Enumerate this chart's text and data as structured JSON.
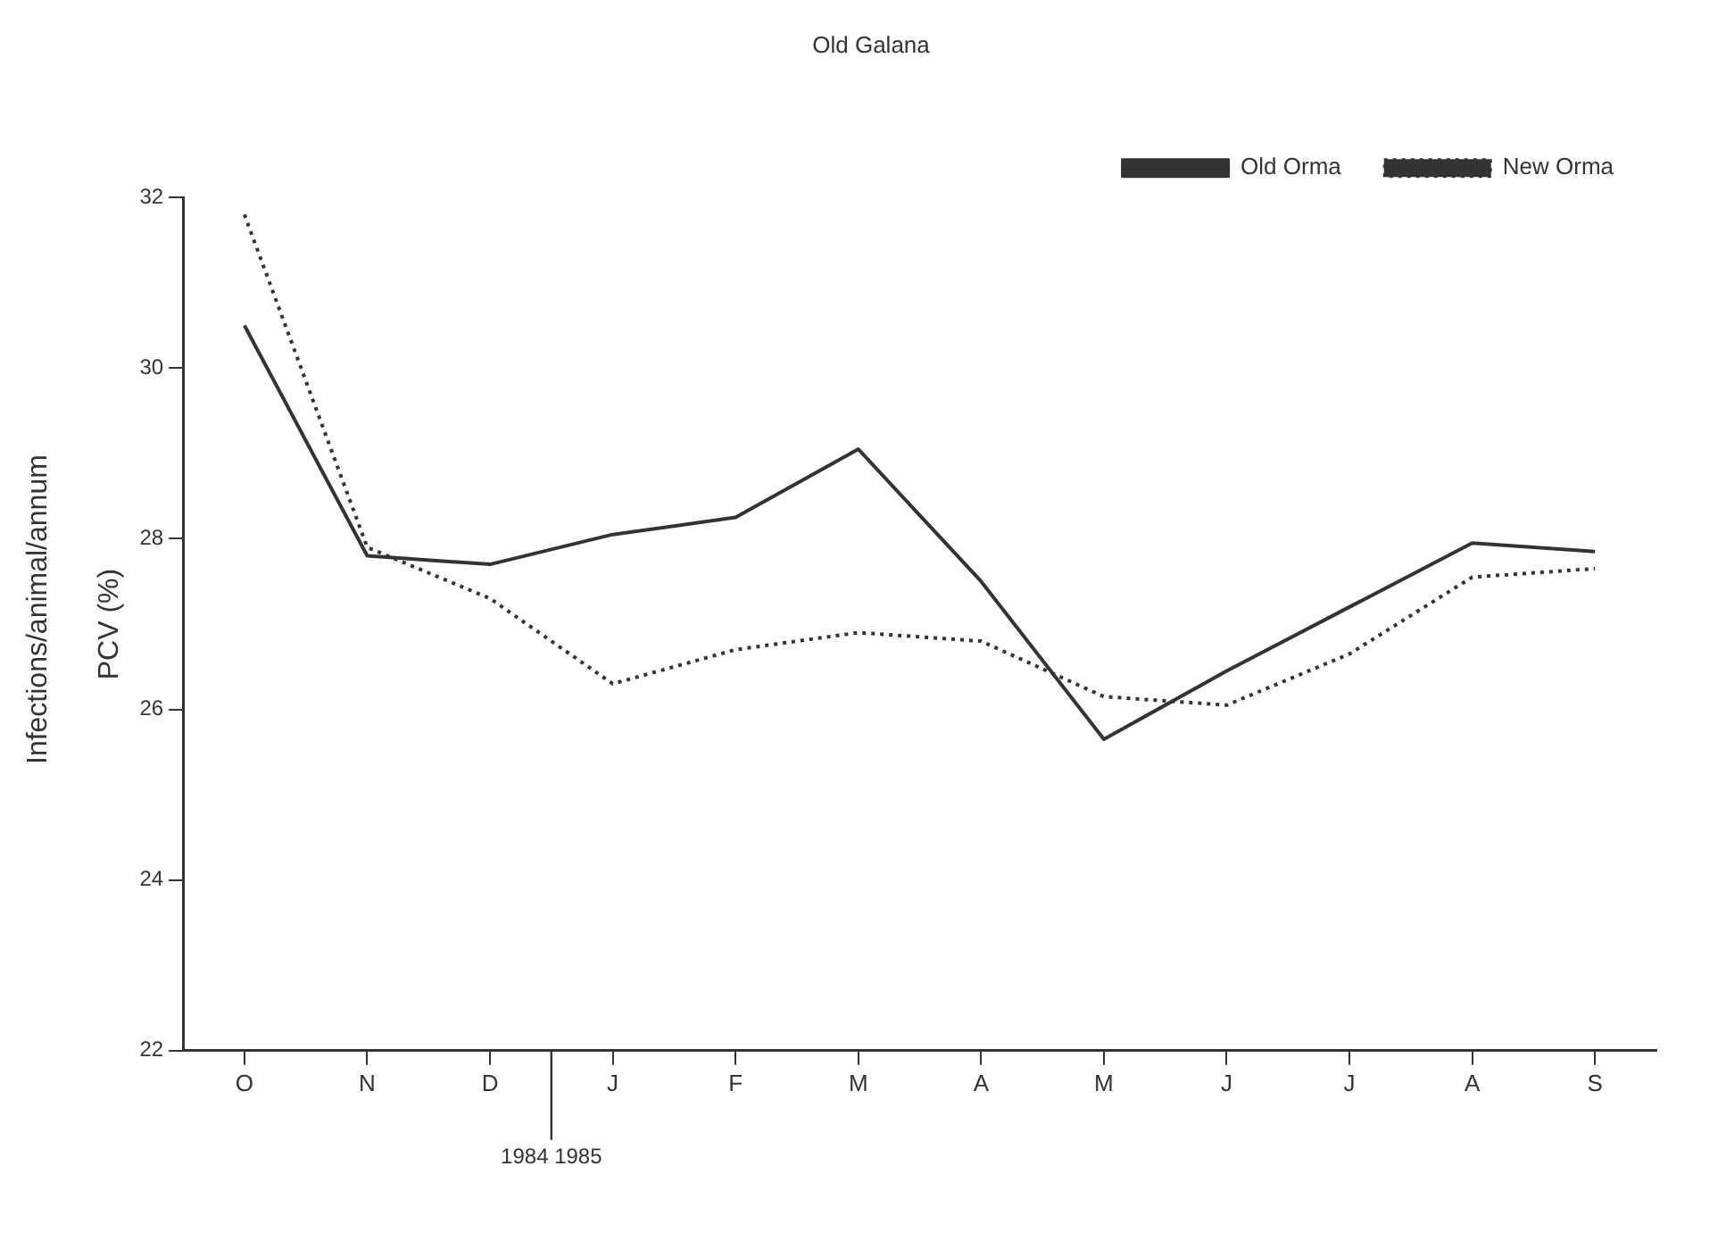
{
  "chart_data": {
    "type": "line",
    "title": "Old Galana",
    "ylabel": "PCV (%)",
    "annotations": [
      "Infections/animal/annum",
      "1984 1985"
    ],
    "categories": [
      "O",
      "N",
      "D",
      "J",
      "F",
      "M",
      "A",
      "M",
      "J",
      "J",
      "A",
      "S"
    ],
    "series": [
      {
        "name": "Old Orma",
        "color": "#333333",
        "line_style": "solid",
        "values": [
          30.5,
          27.8,
          27.7,
          28.05,
          28.25,
          29.05,
          27.5,
          25.65,
          26.45,
          27.2,
          27.95,
          27.85
        ]
      },
      {
        "name": "New Orma",
        "color": "#333333",
        "line_style": "dotted",
        "values": [
          31.8,
          27.9,
          27.3,
          26.3,
          26.7,
          26.9,
          26.8,
          26.15,
          26.05,
          26.65,
          27.55,
          27.65
        ]
      }
    ],
    "ylim": [
      22,
      32
    ],
    "yticks": [
      22,
      24,
      26,
      28,
      30,
      32
    ],
    "grid": false,
    "legend": "top right",
    "marker": "none"
  }
}
